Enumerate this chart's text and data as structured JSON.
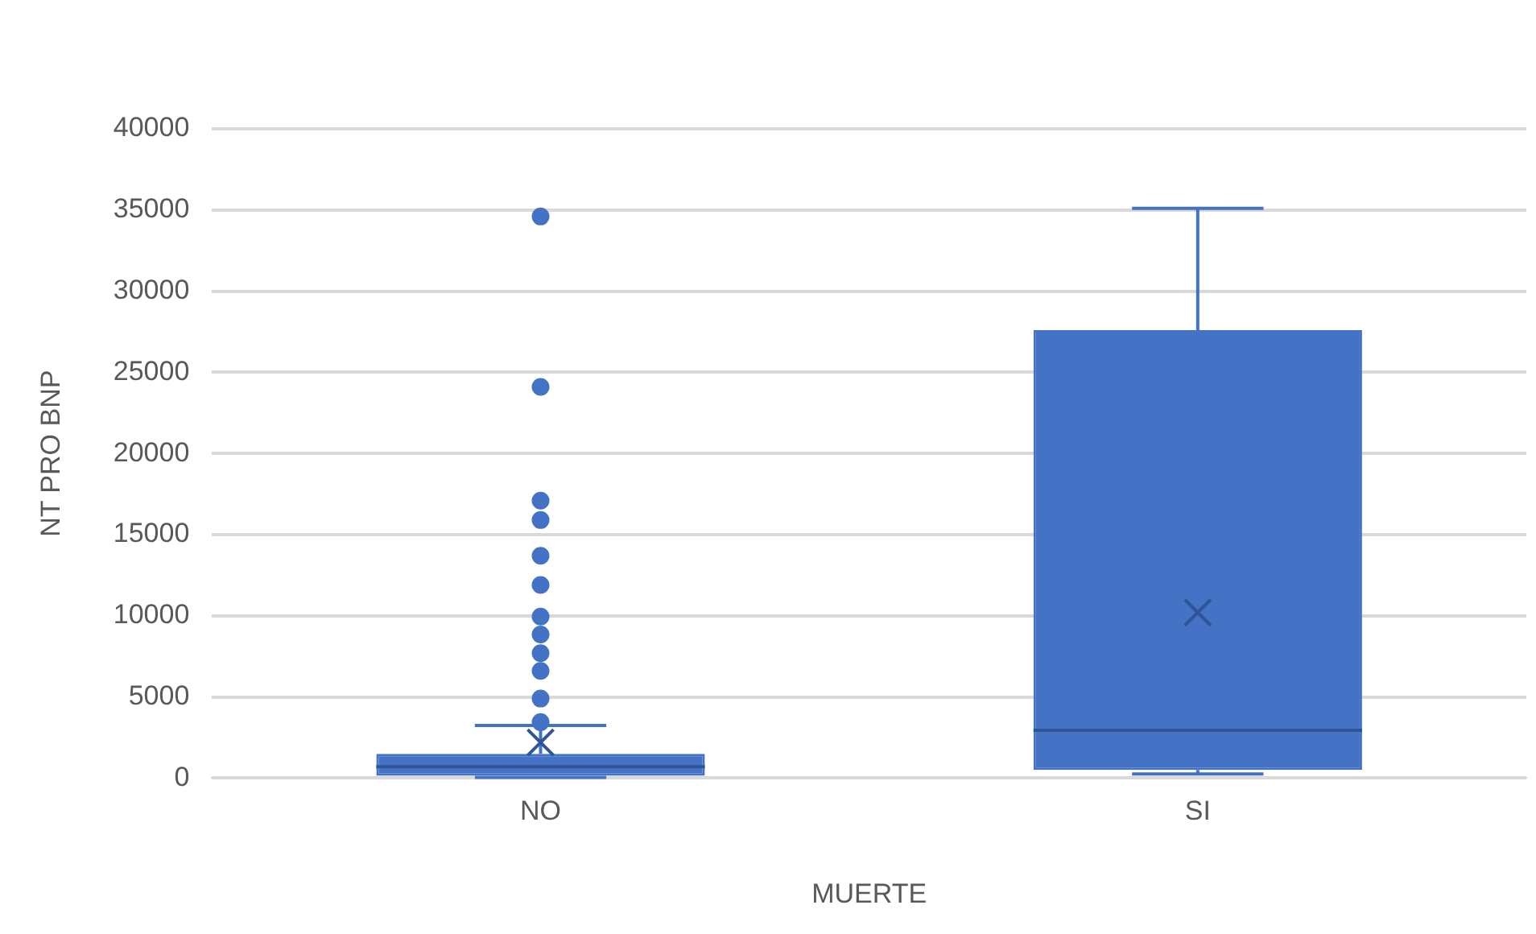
{
  "chart_data": {
    "type": "box",
    "xlabel": "MUERTE",
    "ylabel": "NT PRO BNP",
    "categories": [
      "NO",
      "SI"
    ],
    "color": "#4472c4",
    "boxes": [
      {
        "low": 50,
        "q1": 150,
        "median": 700,
        "q3": 1500,
        "high": 3250,
        "mean": 2200,
        "outliers": [
          3450,
          4900,
          6600,
          7700,
          8850,
          9950,
          11900,
          13700,
          15900,
          17100,
          24100,
          34600
        ]
      },
      {
        "low": 250,
        "q1": 500,
        "median": 2950,
        "q3": 27600,
        "high": 35100,
        "mean": 10200
      }
    ],
    "ylim": [
      0,
      40000
    ],
    "yticks": [
      0,
      5000,
      10000,
      15000,
      20000,
      25000,
      30000,
      35000,
      40000
    ],
    "grid": "y"
  }
}
